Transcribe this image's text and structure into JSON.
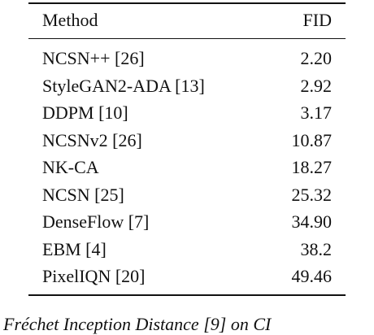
{
  "table": {
    "header": [
      "Method",
      "FID"
    ],
    "rows": [
      [
        "NCSN++ [26]",
        "2.20"
      ],
      [
        "StyleGAN2-ADA [13]",
        "2.92"
      ],
      [
        "DDPM [10]",
        "3.17"
      ],
      [
        "NCSNv2 [26]",
        "10.87"
      ],
      [
        "NK-CA",
        "18.27"
      ],
      [
        "NCSN [25]",
        "25.32"
      ],
      [
        "DenseFlow [7]",
        "34.90"
      ],
      [
        "EBM [4]",
        "38.2"
      ],
      [
        "PixelIQN [20]",
        "49.46"
      ]
    ]
  },
  "caption": "Fréchet Inception Distance [9] on CI"
}
